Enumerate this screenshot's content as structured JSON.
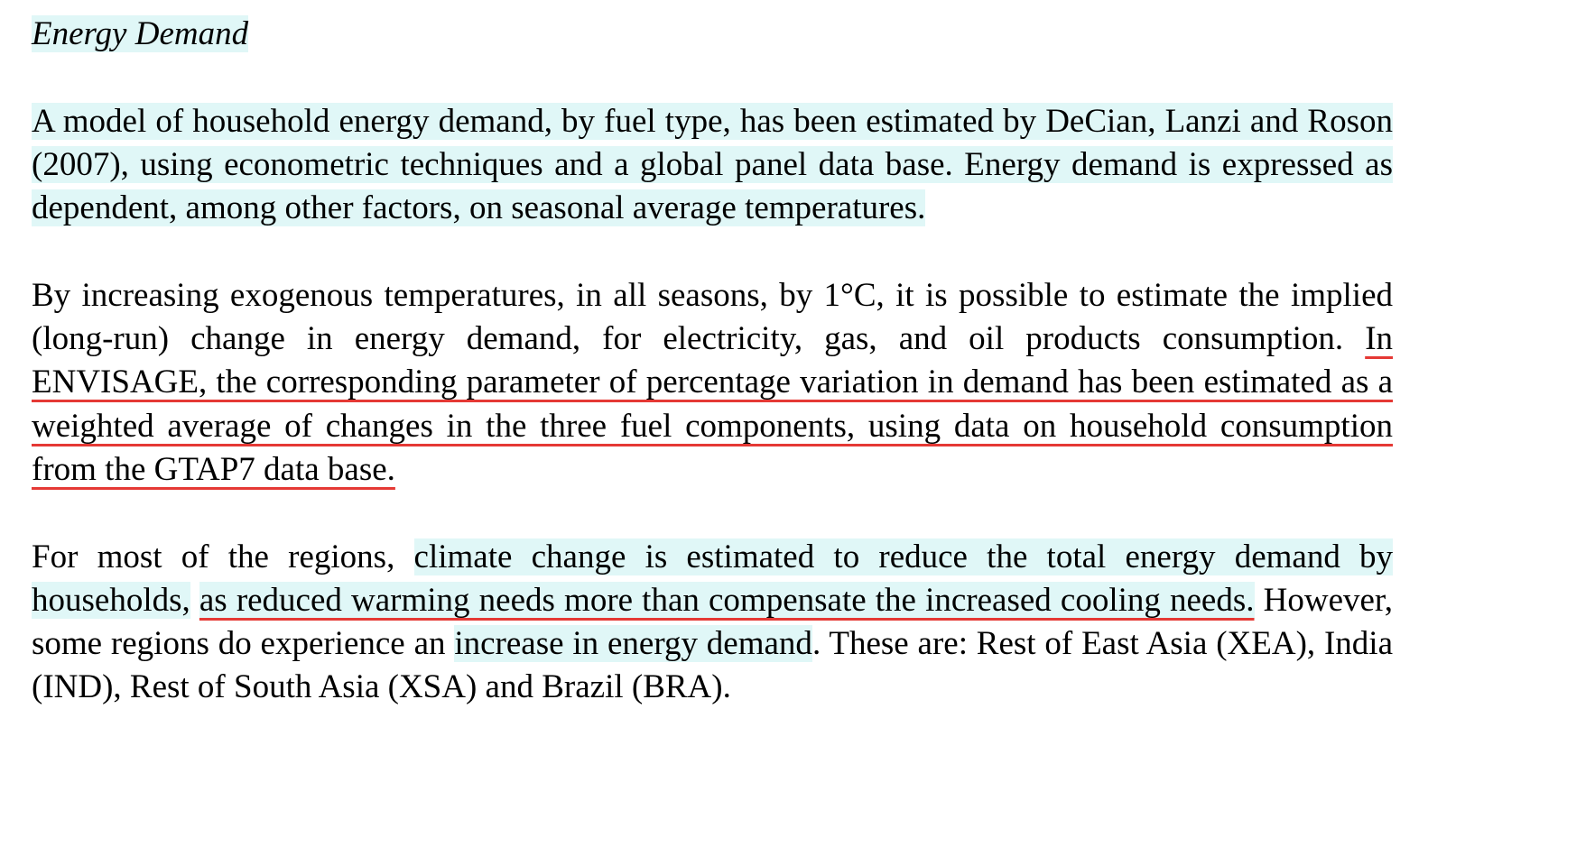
{
  "heading": "Energy Demand",
  "paragraphs": {
    "p1": "A model of household energy demand, by fuel type, has been estimated by DeCian, Lanzi and Roson (2007), using econometric techniques and a global panel data base. Energy demand is expressed as dependent, among other factors, on seasonal average temperatures.",
    "p2_a": "By increasing exogenous temperatures, in all seasons, by 1°C, it is possible to estimate the implied (long-run) change in energy demand, for electricity, gas, and oil products consumption.",
    "p2_b": "In ENVISAGE, the corresponding parameter of percentage variation in demand has been estimated as a weighted average of changes in the three fuel components, using data on household consumption from the GTAP7 data base.",
    "p3_a": "For most of the regions,",
    "p3_b": "climate change is estimated to reduce the total energy demand by households,",
    "p3_c": "as reduced warming needs more than compensate the increased cooling needs.",
    "p3_d": "However, some regions do experience an",
    "p3_e": "increase in energy demand",
    "p3_f": ". These are: Rest of East Asia (XEA), India (IND), Rest of South Asia (XSA) and Brazil (BRA)."
  },
  "colors": {
    "highlight": "#e0f7f7",
    "underline": "#e53935"
  }
}
